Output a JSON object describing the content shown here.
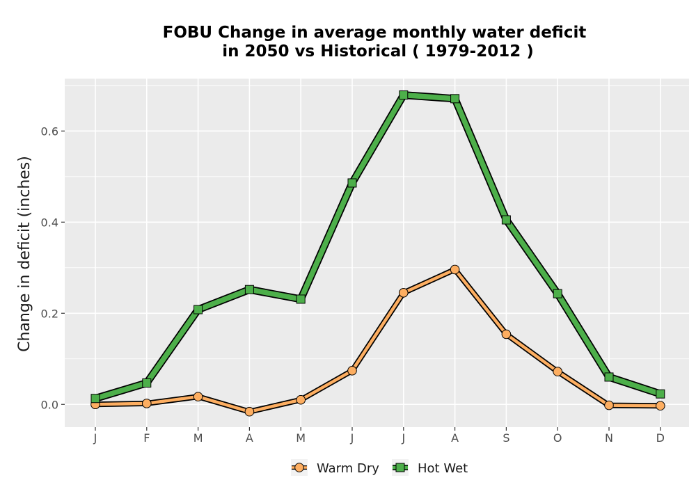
{
  "chart_data": {
    "type": "line",
    "title_line1": "FOBU  Change in average monthly water deficit",
    "title_line2": "in 2050 vs Historical ( 1979-2012 )",
    "xlabel": "",
    "ylabel": "Change in deficit (inches)",
    "categories": [
      "J",
      "F",
      "M",
      "A",
      "M",
      "J",
      "J",
      "A",
      "S",
      "O",
      "N",
      "D"
    ],
    "ylim": [
      -0.05,
      0.715
    ],
    "yticks": [
      0.0,
      0.2,
      0.4,
      0.6
    ],
    "ytick_labels": [
      "0.0",
      "0.2",
      "0.4",
      "0.6"
    ],
    "grid": true,
    "legend_position": "bottom",
    "series": [
      {
        "name": "Warm Dry",
        "values": [
          0.0,
          0.002,
          0.017,
          -0.016,
          0.01,
          0.074,
          0.245,
          0.296,
          0.154,
          0.072,
          -0.002,
          -0.003
        ],
        "fill_color": "#FDAE61",
        "marker": "circle"
      },
      {
        "name": "Hot Wet",
        "values": [
          0.013,
          0.047,
          0.208,
          0.252,
          0.231,
          0.486,
          0.679,
          0.671,
          0.405,
          0.243,
          0.06,
          0.023
        ],
        "fill_color": "#4DAF4A",
        "marker": "square"
      }
    ]
  }
}
